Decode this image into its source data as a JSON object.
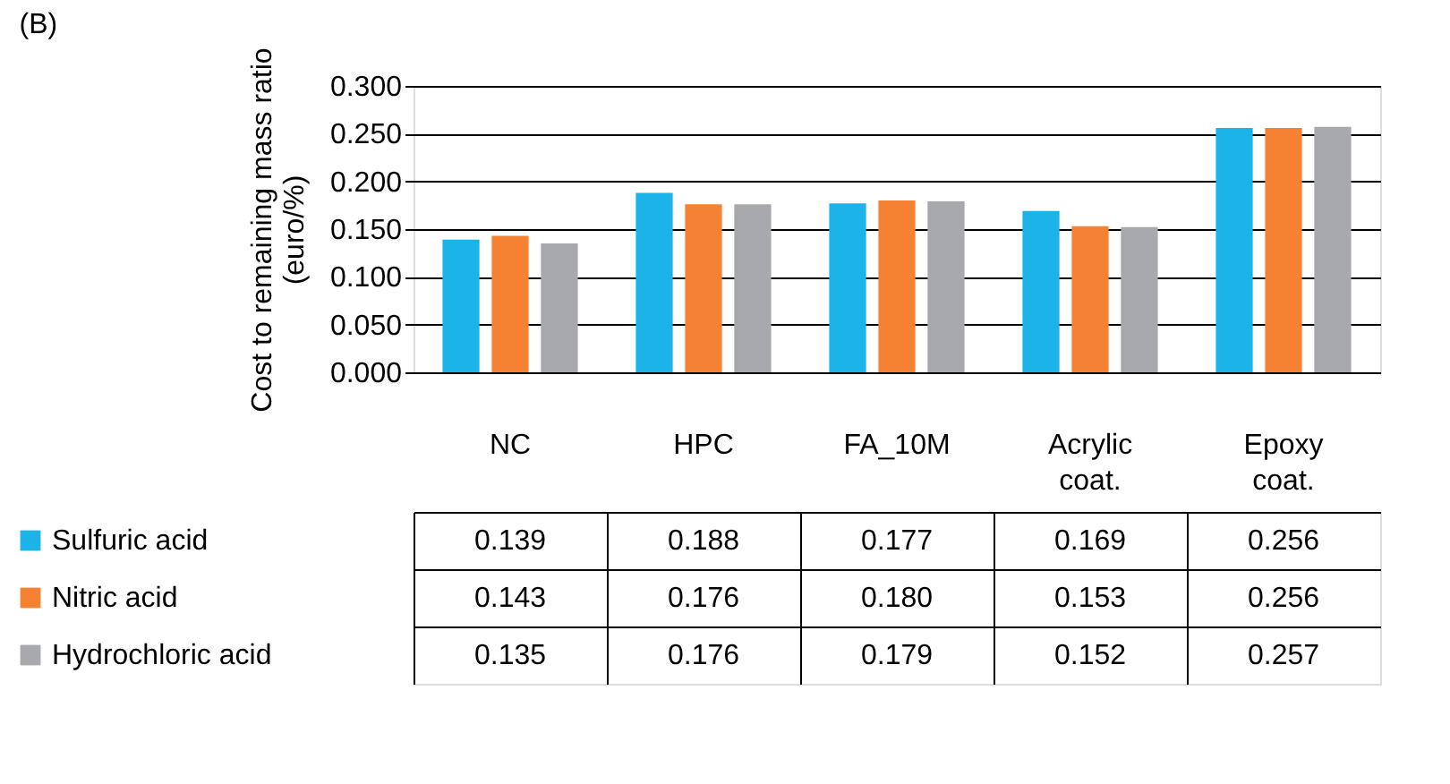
{
  "chart_data": {
    "type": "bar",
    "title": "(B)",
    "ylabel": "Cost to remaining mass ratio\n(euro/%)",
    "categories": [
      "NC",
      "HPC",
      "FA_10M",
      "Acrylic coat.",
      "Epoxy coat."
    ],
    "series": [
      {
        "name": "Sulfuric acid",
        "color": "#1cb4e8",
        "values": [
          0.139,
          0.188,
          0.177,
          0.169,
          0.256
        ],
        "value_labels": [
          "0.139",
          "0.188",
          "0.177",
          "0.169",
          "0.256"
        ]
      },
      {
        "name": "Nitric acid",
        "color": "#f58232",
        "values": [
          0.143,
          0.176,
          0.18,
          0.153,
          0.256
        ],
        "value_labels": [
          "0.143",
          "0.176",
          "0.180",
          "0.153",
          "0.256"
        ]
      },
      {
        "name": "Hydrochloric acid",
        "color": "#a7a9ac",
        "values": [
          0.135,
          0.176,
          0.179,
          0.152,
          0.257
        ],
        "value_labels": [
          "0.135",
          "0.176",
          "0.179",
          "0.152",
          "0.257"
        ]
      }
    ],
    "ylim": [
      0,
      0.3
    ],
    "yticks": [
      {
        "value": 0,
        "label": "0.000"
      },
      {
        "value": 0.05,
        "label": "0.050"
      },
      {
        "value": 0.1,
        "label": "0.100"
      },
      {
        "value": 0.15,
        "label": "0.150"
      },
      {
        "value": 0.2,
        "label": "0.200"
      },
      {
        "value": 0.25,
        "label": "0.250"
      },
      {
        "value": 0.3,
        "label": "0.300"
      }
    ],
    "grid": "y",
    "legend": "bottom"
  }
}
